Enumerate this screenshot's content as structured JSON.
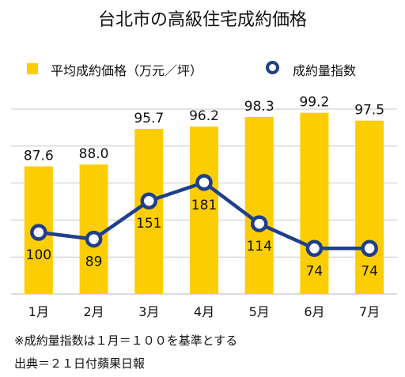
{
  "chart_data": {
    "type": "bar+line",
    "title": "台北市の高級住宅成約価格",
    "categories": [
      "1月",
      "2月",
      "3月",
      "4月",
      "5月",
      "6月",
      "7月"
    ],
    "series": [
      {
        "name": "平均成約価格（万元／坪）",
        "type": "bar",
        "values": [
          87.6,
          88.0,
          95.7,
          96.2,
          98.3,
          99.2,
          97.5
        ],
        "color": "#fccd00"
      },
      {
        "name": "成約量指数",
        "type": "line",
        "values": [
          100,
          89,
          151,
          181,
          114,
          74,
          74
        ],
        "color": "#203f8a"
      }
    ],
    "grid": true,
    "legend_position": "top"
  },
  "notes": {
    "line1": "※成約量指数は１月＝１００を基準とする",
    "line2": "出典＝２１日付蘋果日報"
  }
}
